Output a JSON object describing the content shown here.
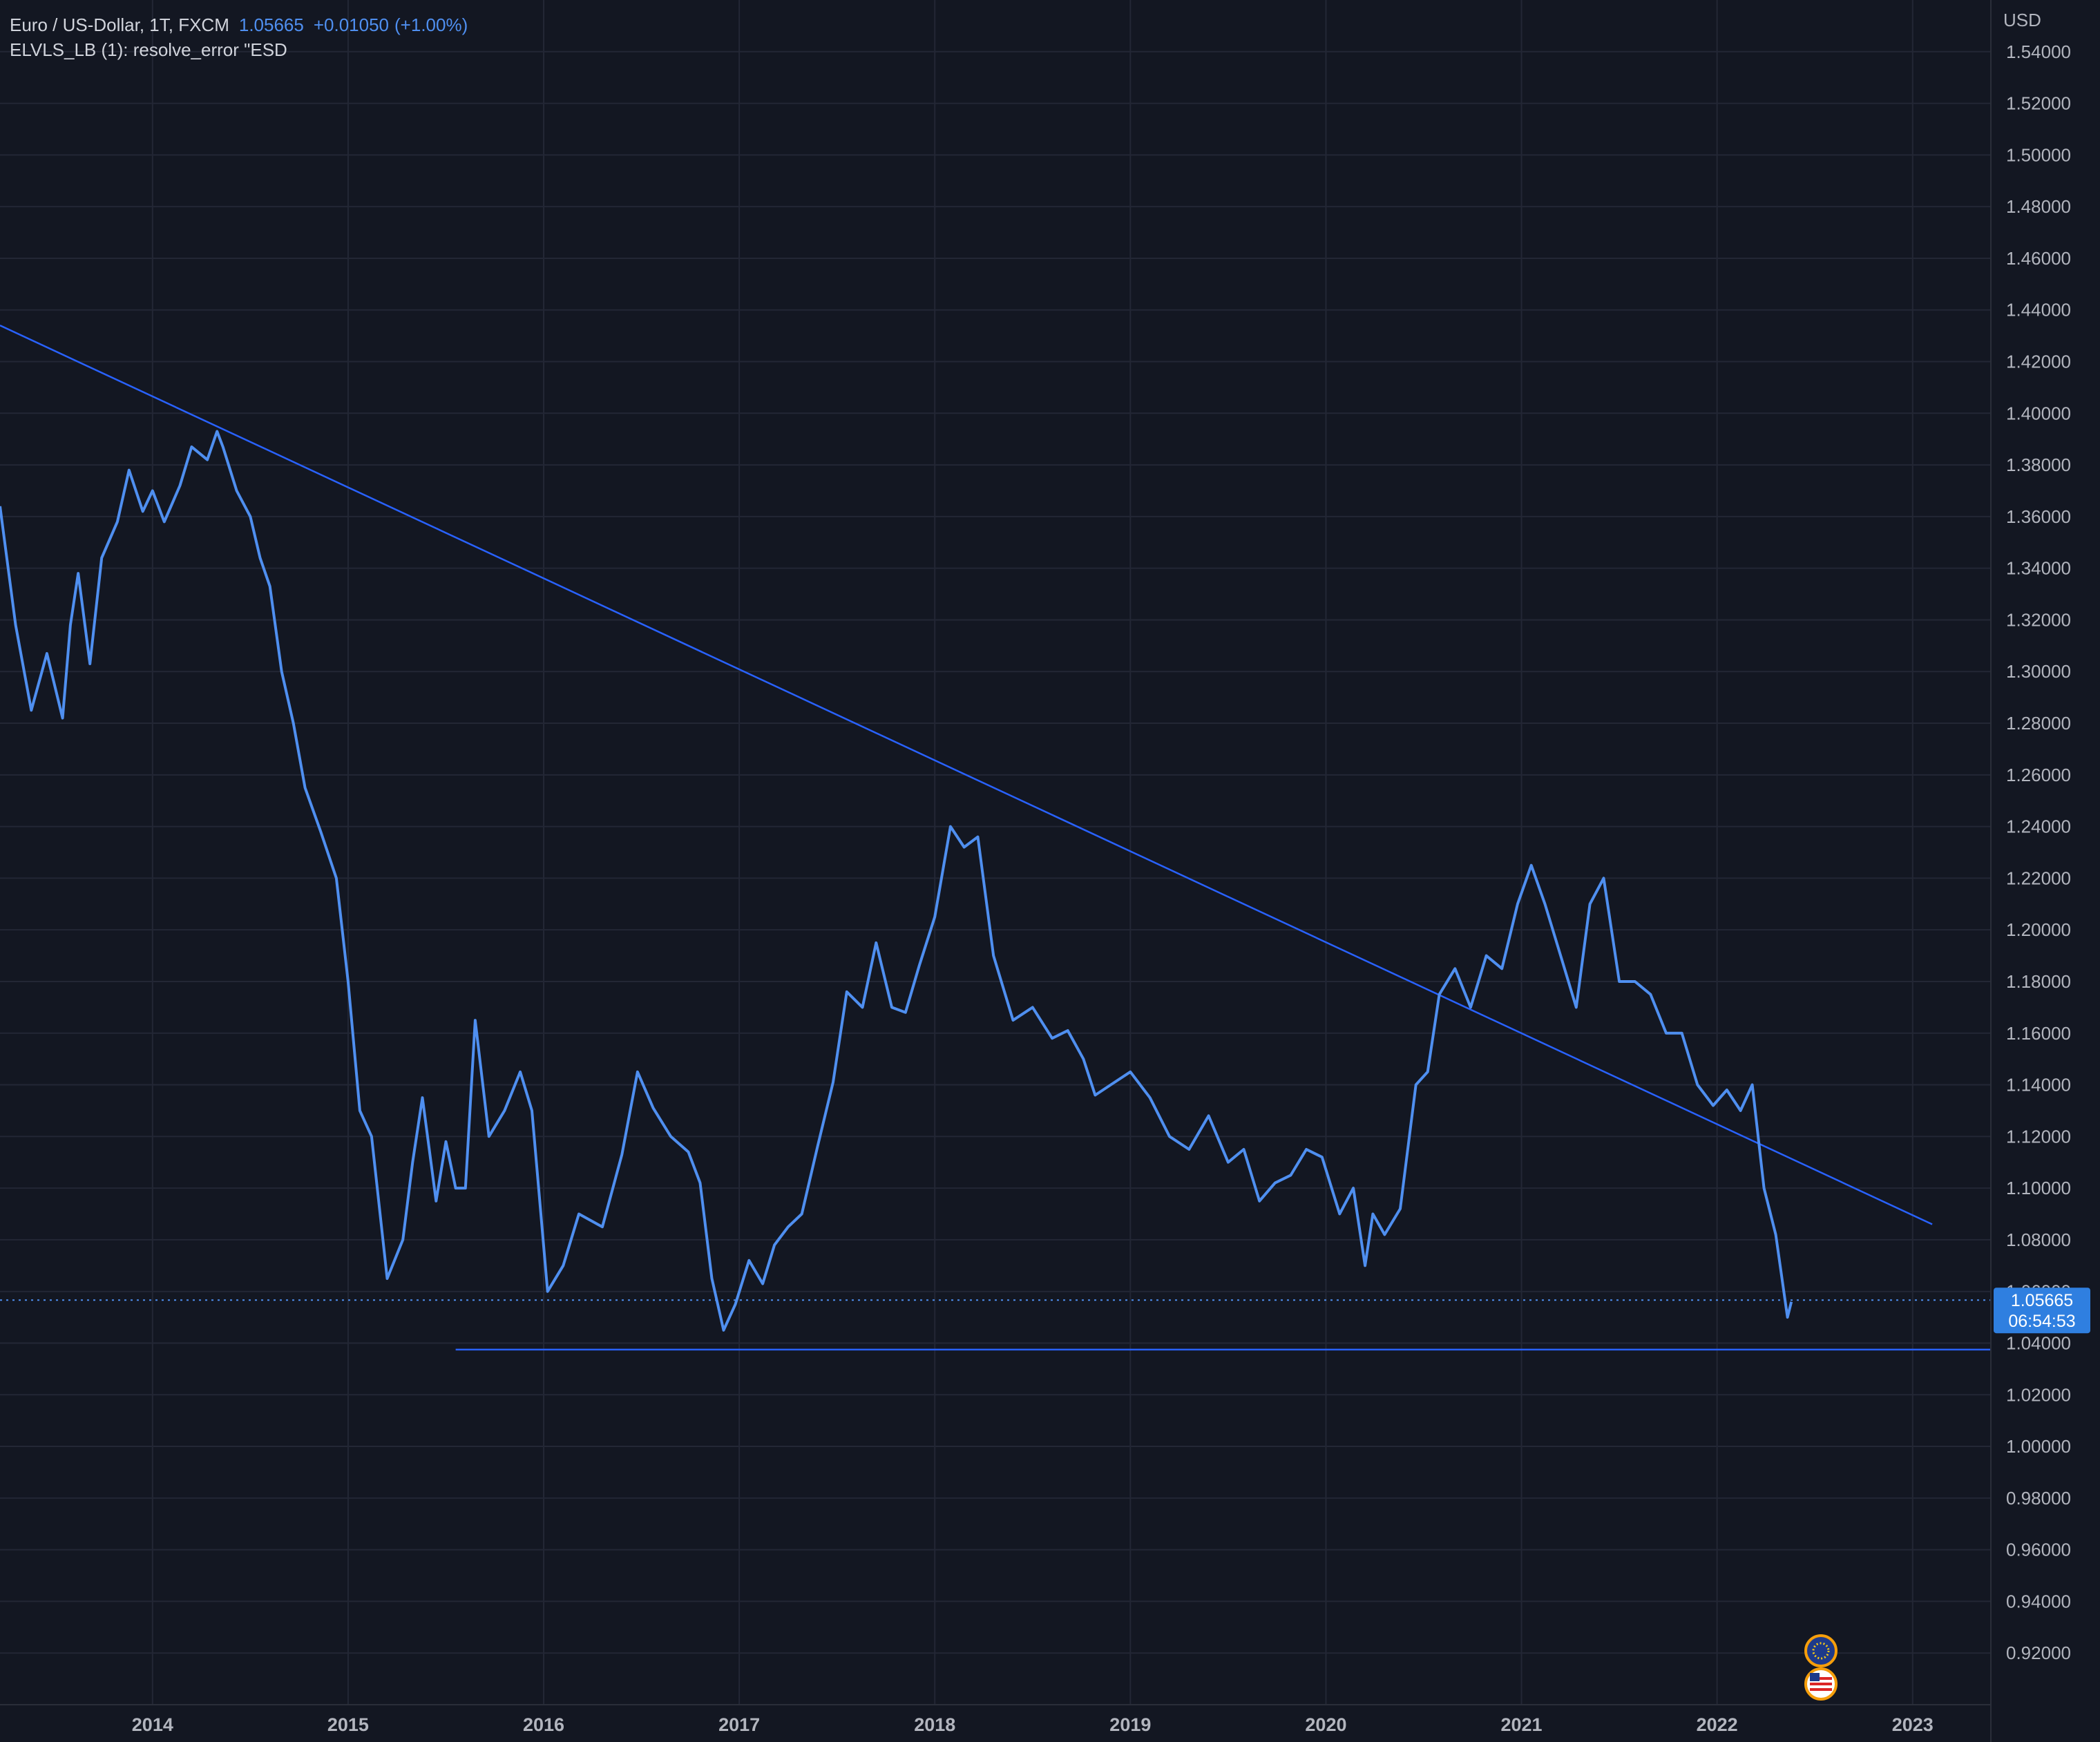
{
  "header": {
    "symbol": "Euro / US-Dollar, 1T, FXCM",
    "last": "1.05665",
    "change": "+0.01050",
    "change_pct": "(+1.00%)",
    "indicator": "ELVLS_LB (1): resolve_error \"ESD"
  },
  "price_tag": {
    "value": "1.05665",
    "countdown": "06:54:53"
  },
  "icons": [
    "eu-flag-icon",
    "us-flag-icon"
  ],
  "colors": {
    "background": "#131722",
    "series": "#4f8ff0",
    "trendline": "#2962ff",
    "grid": "#232735",
    "axis_text": "#b2b5be"
  },
  "chart_data": {
    "type": "line",
    "currency_label": "USD",
    "ylim": [
      0.9,
      1.56
    ],
    "xlim": [
      2013.22,
      2023.4
    ],
    "grid": true,
    "x_ticks": [
      "2014",
      "2015",
      "2016",
      "2017",
      "2018",
      "2019",
      "2020",
      "2021",
      "2022",
      "2023"
    ],
    "y_ticks": [
      "1.54000",
      "1.52000",
      "1.50000",
      "1.48000",
      "1.46000",
      "1.44000",
      "1.42000",
      "1.40000",
      "1.38000",
      "1.36000",
      "1.34000",
      "1.32000",
      "1.30000",
      "1.28000",
      "1.26000",
      "1.24000",
      "1.22000",
      "1.20000",
      "1.18000",
      "1.16000",
      "1.14000",
      "1.12000",
      "1.10000",
      "1.08000",
      "1.06000",
      "1.04000",
      "1.02000",
      "1.00000",
      "0.98000",
      "0.96000",
      "0.94000",
      "0.92000"
    ],
    "last_price": 1.05665,
    "series": [
      {
        "x": [
          2013.22,
          2013.3,
          2013.38,
          2013.46,
          2013.54,
          2013.58,
          2013.62,
          2013.68,
          2013.74,
          2013.82,
          2013.88,
          2013.95,
          2014.0,
          2014.06,
          2014.14,
          2014.2,
          2014.28,
          2014.33,
          2014.36,
          2014.43,
          2014.5,
          2014.55,
          2014.6,
          2014.66,
          2014.72,
          2014.78,
          2014.86,
          2014.94,
          2015.0,
          2015.06,
          2015.12,
          2015.2,
          2015.28,
          2015.33,
          2015.38,
          2015.45,
          2015.5,
          2015.55,
          2015.6,
          2015.65,
          2015.72,
          2015.8,
          2015.88,
          2015.94,
          2016.02,
          2016.1,
          2016.18,
          2016.3,
          2016.4,
          2016.48,
          2016.56,
          2016.65,
          2016.74,
          2016.8,
          2016.86,
          2016.92,
          2016.98,
          2017.05,
          2017.12,
          2017.18,
          2017.25,
          2017.32,
          2017.4,
          2017.48,
          2017.55,
          2017.63,
          2017.7,
          2017.78,
          2017.85,
          2017.92,
          2018.0,
          2018.08,
          2018.15,
          2018.22,
          2018.3,
          2018.4,
          2018.5,
          2018.6,
          2018.68,
          2018.76,
          2018.82,
          2018.9,
          2019.0,
          2019.1,
          2019.2,
          2019.3,
          2019.4,
          2019.5,
          2019.58,
          2019.66,
          2019.74,
          2019.82,
          2019.9,
          2019.98,
          2020.07,
          2020.14,
          2020.2,
          2020.24,
          2020.3,
          2020.38,
          2020.46,
          2020.52,
          2020.58,
          2020.66,
          2020.74,
          2020.82,
          2020.9,
          2020.98,
          2021.05,
          2021.12,
          2021.2,
          2021.28,
          2021.35,
          2021.42,
          2021.5,
          2021.58,
          2021.66,
          2021.74,
          2021.82,
          2021.9,
          2021.98,
          2022.05,
          2022.12,
          2022.18,
          2022.24,
          2022.3,
          2022.36,
          2022.38
        ],
        "values": [
          1.364,
          1.318,
          1.285,
          1.307,
          1.282,
          1.318,
          1.338,
          1.303,
          1.344,
          1.358,
          1.378,
          1.362,
          1.37,
          1.358,
          1.372,
          1.387,
          1.382,
          1.393,
          1.387,
          1.37,
          1.36,
          1.344,
          1.333,
          1.3,
          1.28,
          1.255,
          1.238,
          1.22,
          1.18,
          1.13,
          1.12,
          1.065,
          1.08,
          1.11,
          1.135,
          1.095,
          1.118,
          1.1,
          1.1,
          1.165,
          1.12,
          1.13,
          1.145,
          1.13,
          1.06,
          1.07,
          1.09,
          1.085,
          1.113,
          1.145,
          1.131,
          1.12,
          1.114,
          1.102,
          1.065,
          1.045,
          1.055,
          1.072,
          1.063,
          1.078,
          1.085,
          1.09,
          1.116,
          1.141,
          1.176,
          1.17,
          1.195,
          1.17,
          1.168,
          1.186,
          1.205,
          1.24,
          1.232,
          1.236,
          1.19,
          1.165,
          1.17,
          1.158,
          1.161,
          1.15,
          1.136,
          1.14,
          1.145,
          1.135,
          1.12,
          1.115,
          1.128,
          1.11,
          1.115,
          1.095,
          1.102,
          1.105,
          1.115,
          1.112,
          1.09,
          1.1,
          1.07,
          1.09,
          1.082,
          1.092,
          1.14,
          1.145,
          1.175,
          1.185,
          1.17,
          1.19,
          1.185,
          1.21,
          1.225,
          1.21,
          1.19,
          1.17,
          1.21,
          1.22,
          1.18,
          1.18,
          1.175,
          1.16,
          1.16,
          1.14,
          1.132,
          1.138,
          1.13,
          1.14,
          1.1,
          1.082,
          1.05,
          1.056
        ]
      }
    ],
    "trendlines": [
      {
        "x": [
          2013.22,
          2023.1
        ],
        "y": [
          1.434,
          1.086
        ]
      },
      {
        "x": [
          2015.55,
          2023.4
        ],
        "y": [
          1.0375,
          1.0375
        ]
      }
    ]
  }
}
